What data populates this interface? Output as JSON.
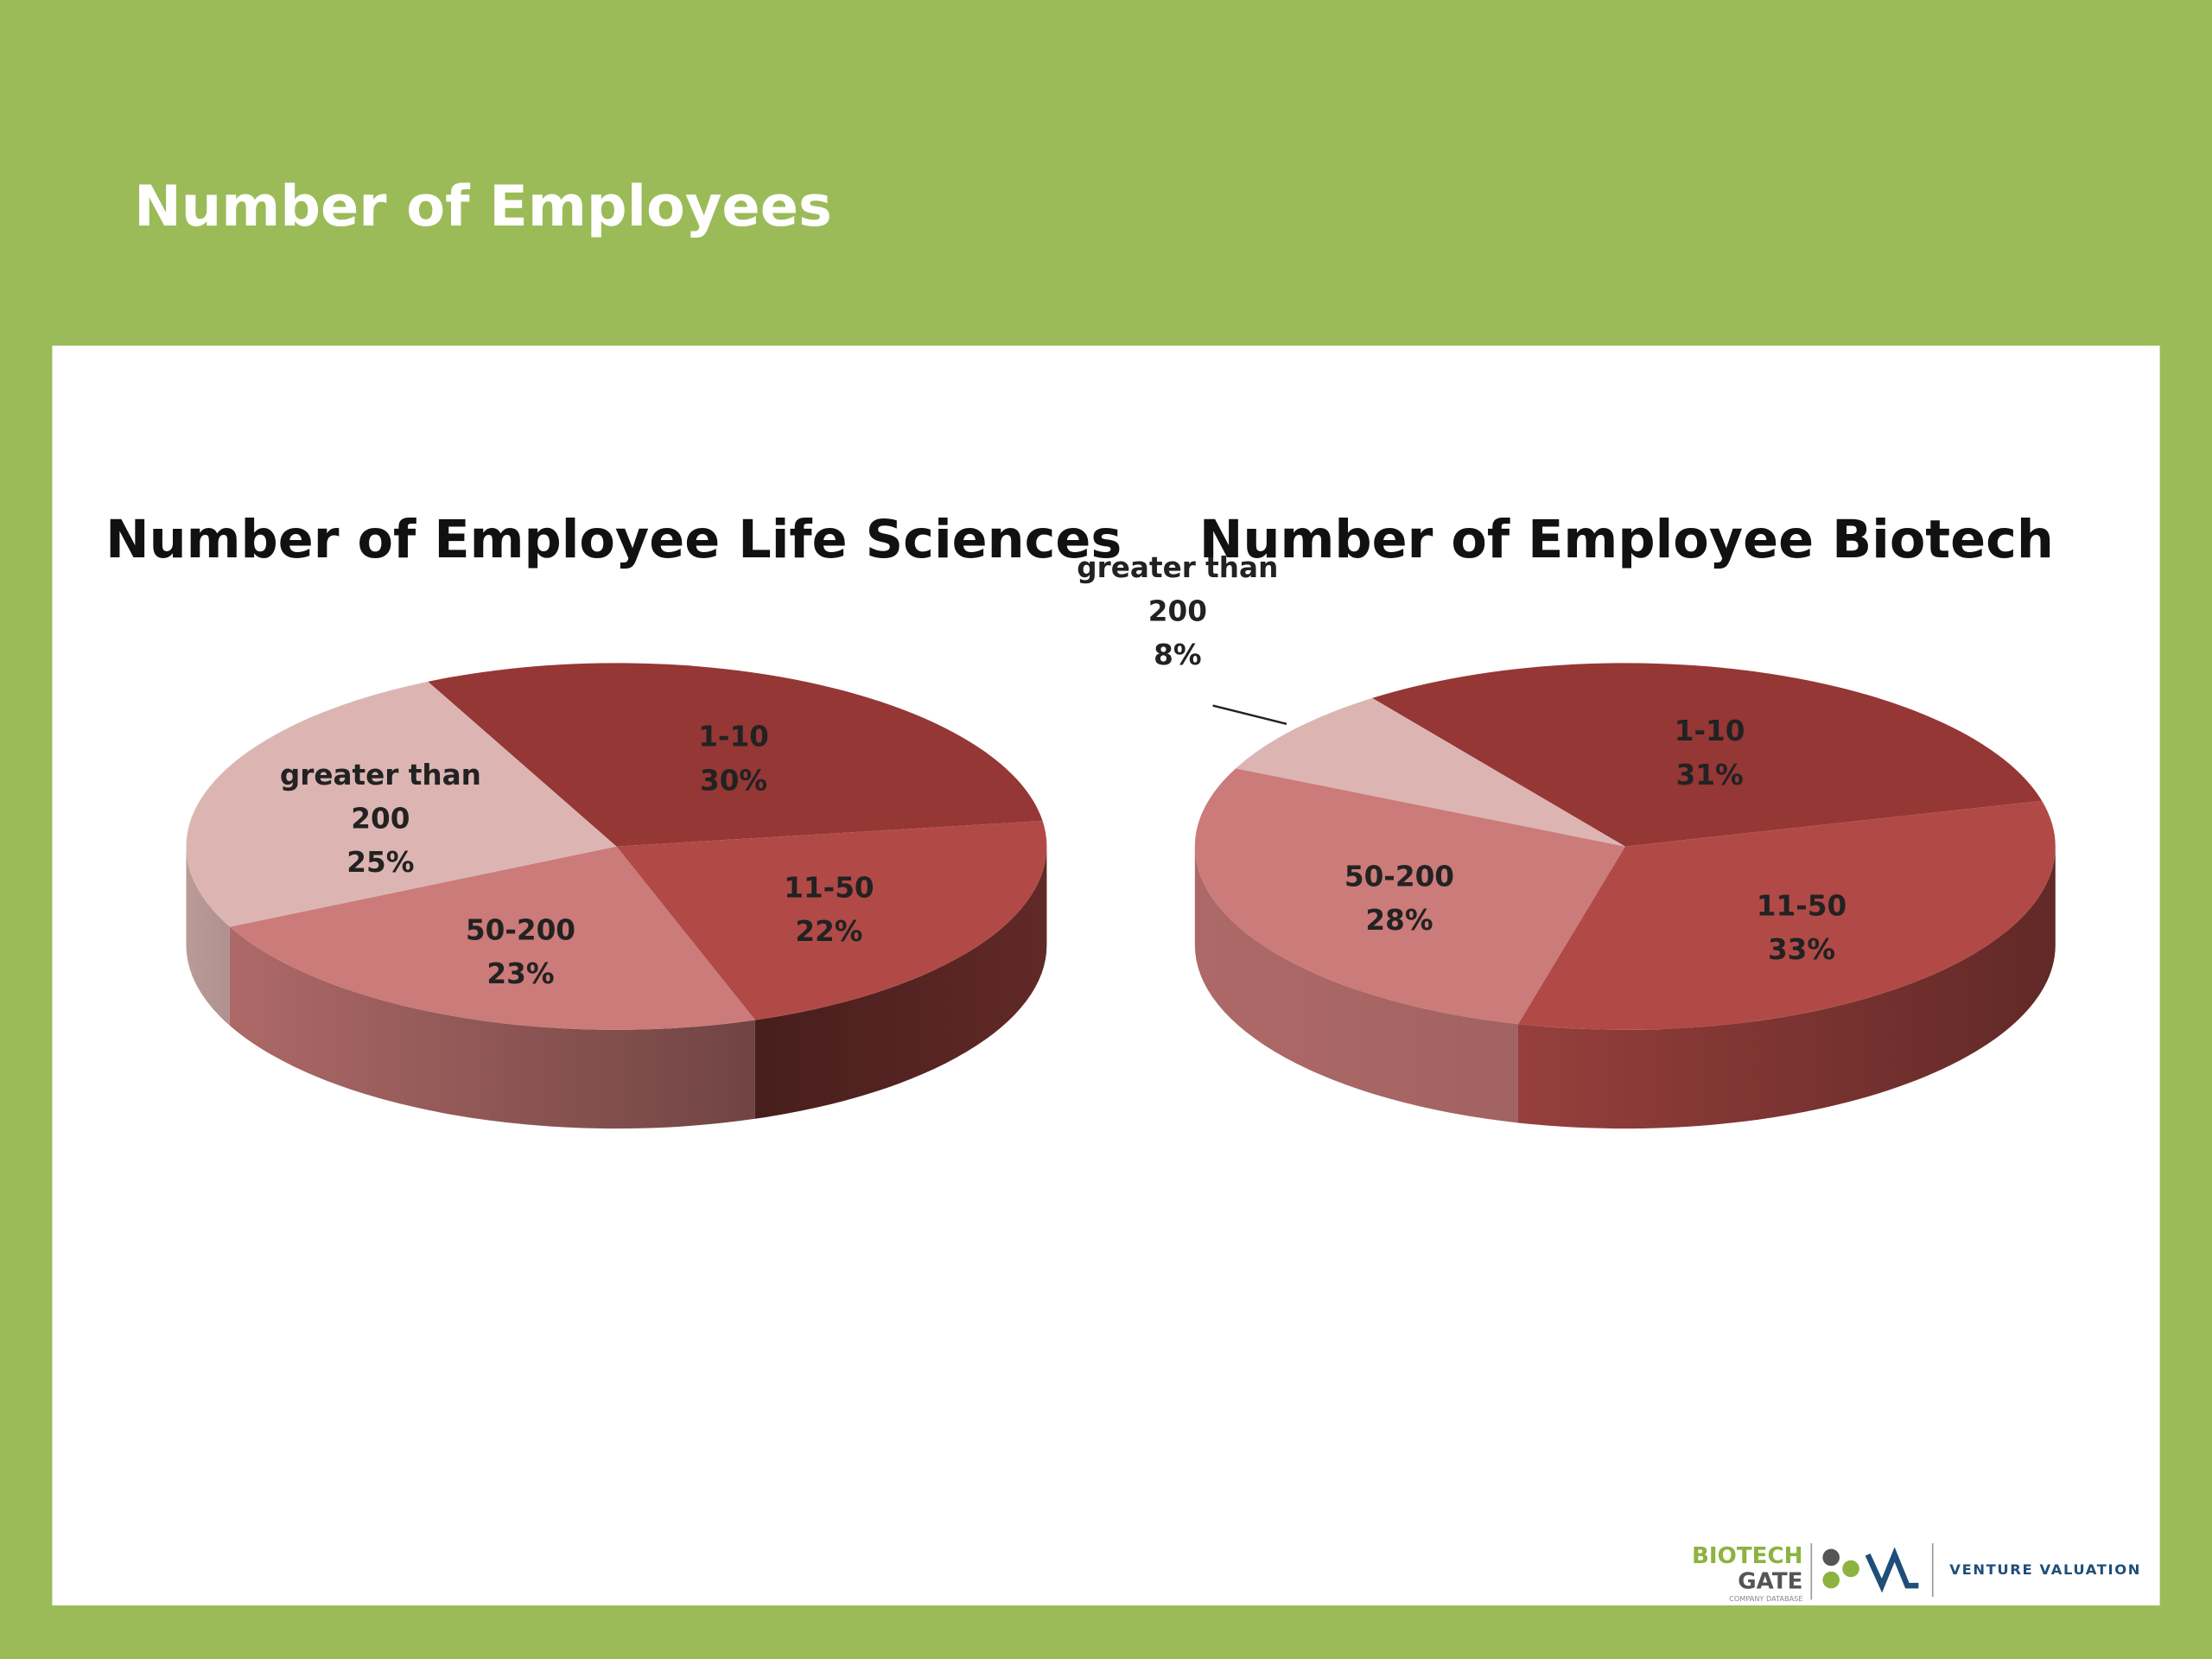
{
  "title": "Number of Employees",
  "chart_data": [
    {
      "type": "pie",
      "title": "Number of Employee Life Sciences",
      "categories": [
        "1-10",
        "11-50",
        "50-200",
        "greater than 200"
      ],
      "values": [
        30,
        22,
        23,
        25
      ],
      "value_labels": [
        "30%",
        "22%",
        "23%",
        "25%"
      ],
      "colors": [
        "#953735",
        "#b14a46",
        "#cb7b79",
        "#dcb5b3"
      ]
    },
    {
      "type": "pie",
      "title": "Number of Employee Biotech",
      "categories": [
        "1-10",
        "11-50",
        "50-200",
        "greater than 200"
      ],
      "values": [
        31,
        33,
        28,
        8
      ],
      "value_labels": [
        "31%",
        "33%",
        "28%",
        "8%"
      ],
      "colors": [
        "#953735",
        "#b14a46",
        "#cb7b79",
        "#dcb5b3"
      ]
    }
  ],
  "footer": {
    "brand_top": "BIOTECH",
    "brand_bottom": "GATE",
    "brand_sub": "COMPANY DATABASE",
    "partner": "VENTURE VALUATION"
  }
}
